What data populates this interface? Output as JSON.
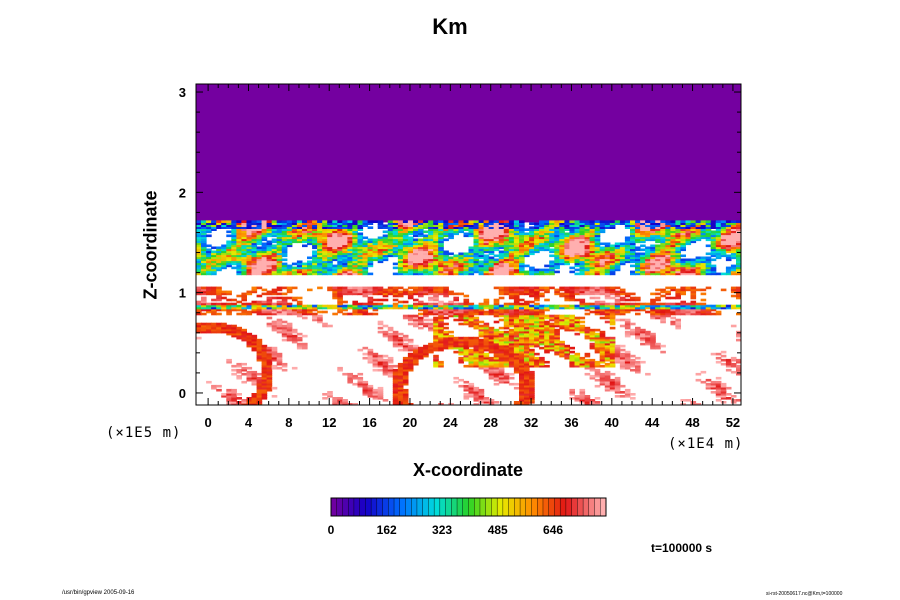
{
  "chart_data": {
    "type": "heatmap",
    "title": "Km",
    "xlabel": "X-coordinate",
    "ylabel": "Z-coordinate",
    "x_scale_label": "(×1E4 m)",
    "y_scale_label": "(×1E5 m)",
    "x_ticks": [
      0,
      4,
      8,
      12,
      16,
      20,
      24,
      28,
      32,
      36,
      40,
      44,
      48,
      52
    ],
    "y_ticks": [
      0,
      1,
      2,
      3
    ],
    "xlim": [
      -1.2,
      52.8
    ],
    "ylim": [
      -0.12,
      3.08
    ],
    "colorbar": {
      "ticks": [
        0,
        162,
        323,
        485,
        646
      ],
      "range": [
        0,
        800
      ]
    },
    "time_label": "t=100000 s",
    "layers": {
      "uniform_top": {
        "z_min": 1.7,
        "z_max": 3.08,
        "value": 0
      },
      "turbulent_band": {
        "z_min": 1.18,
        "z_max": 1.72,
        "description": "highly variable Km"
      },
      "mid_band": {
        "z_min": 0.78,
        "z_max": 1.05
      },
      "lower_band": {
        "z_min": -0.12,
        "z_max": 0.8
      }
    }
  },
  "footer": {
    "left": "/usr/bin/gpview 2005-09-16",
    "right": "si-rst-20050617.nc@Km,t=100000"
  },
  "colors": {
    "top_layer": "#7400a0",
    "axis": "#000000"
  }
}
